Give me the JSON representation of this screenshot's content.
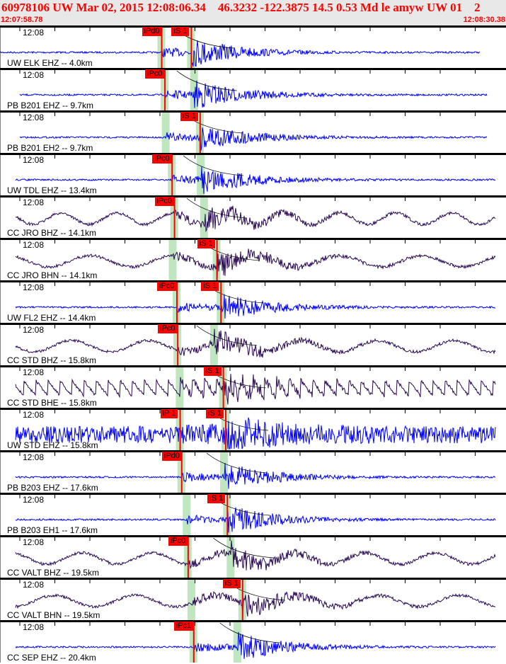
{
  "header": {
    "title": "60978106 UW Mar 02, 2015 12:08:06.34    46.3232 -122.3875 14.5 0.53 Md le amyw UW 01    2",
    "start_time": "12:07:58.78",
    "end_time": "12:08:30.38",
    "window_seconds": 31.6
  },
  "colors": {
    "short_period": "#0000ff",
    "broadband": "#2a0a55",
    "pick": "#ff0000",
    "pick_window": "#bfe6bf"
  },
  "time_label": "12:08",
  "traces": [
    {
      "label": "UW ELK EHZ -- 4.0km",
      "kind": "short_period",
      "picks": [
        {
          "label": "iPd0",
          "t": 10.1
        },
        {
          "label": "iS 1",
          "t": 11.95
        }
      ]
    },
    {
      "label": "PB B201 EHZ -- 9.7km",
      "kind": "short_period",
      "picks": [
        {
          "label": "iPc0",
          "t": 10.3
        }
      ]
    },
    {
      "label": "PB B201 EH2 -- 9.7km",
      "kind": "short_period",
      "picks": [
        {
          "label": "iS 1",
          "t": 12.5
        }
      ]
    },
    {
      "label": "UW TDL EHZ -- 13.4km",
      "kind": "short_period",
      "picks": [
        {
          "label": "iPc0",
          "t": 10.75
        }
      ]
    },
    {
      "label": "CC JRO BHZ -- 14.1km",
      "kind": "broadband",
      "picks": [
        {
          "label": "iPc0",
          "t": 10.9
        }
      ]
    },
    {
      "label": "CC JRO BHN -- 14.1km",
      "kind": "broadband",
      "picks": [
        {
          "label": "iS 1",
          "t": 13.55
        }
      ]
    },
    {
      "label": "UW FL2 EHZ -- 14.4km",
      "kind": "short_period",
      "picks": [
        {
          "label": "iPc0",
          "t": 11.05
        },
        {
          "label": "iS 1",
          "t": 13.8
        }
      ]
    },
    {
      "label": "CC STD BHZ -- 15.8km",
      "kind": "broadband",
      "picks": [
        {
          "label": "iPc0",
          "t": 11.1
        }
      ]
    },
    {
      "label": "CC STD BHE -- 15.8km",
      "kind": "broadband",
      "picks": [
        {
          "label": "iS 1",
          "t": 13.95
        }
      ]
    },
    {
      "label": "UW STD EHZ -- 15.8km",
      "kind": "short_period",
      "picks": [
        {
          "label": "iP 1",
          "t": 11.25
        },
        {
          "label": "iS 1",
          "t": 14.1
        }
      ]
    },
    {
      "label": "PB B203 EHZ -- 17.6km",
      "kind": "short_period",
      "picks": [
        {
          "label": "iPd0",
          "t": 11.35
        }
      ]
    },
    {
      "label": "PB B203 EH1 -- 17.6km",
      "kind": "short_period",
      "picks": [
        {
          "label": "iS 1",
          "t": 14.2
        }
      ]
    },
    {
      "label": "CC VALT BHZ -- 19.5km",
      "kind": "broadband",
      "picks": [
        {
          "label": "iPc0",
          "t": 11.75
        }
      ]
    },
    {
      "label": "CC VALT BHN -- 19.5km",
      "kind": "broadband",
      "picks": [
        {
          "label": "iS 1",
          "t": 15.15
        }
      ]
    },
    {
      "label": "CC SEP EHZ -- 20.4km",
      "kind": "short_period",
      "picks": [
        {
          "label": "iPc1",
          "t": 12.1
        }
      ]
    }
  ]
}
